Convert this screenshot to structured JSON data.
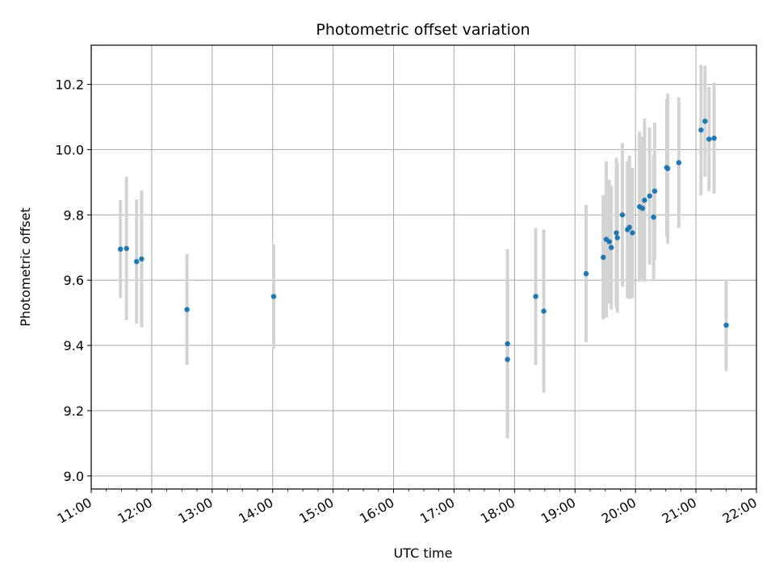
{
  "chart_data": {
    "type": "scatter",
    "title": "Photometric offset variation",
    "xlabel": "UTC time",
    "ylabel": "Photometric offset",
    "xlim": [
      "11:00",
      "22:00"
    ],
    "ylim": [
      8.96,
      10.32
    ],
    "x_ticks": [
      "11:00",
      "12:00",
      "13:00",
      "14:00",
      "15:00",
      "16:00",
      "17:00",
      "18:00",
      "19:00",
      "20:00",
      "21:00",
      "22:00"
    ],
    "y_ticks": [
      9.0,
      9.2,
      9.4,
      9.6,
      9.8,
      10.0,
      10.2
    ],
    "grid": true,
    "marker_color": "#1f77b4",
    "errorbar_color": "#d3d3d3",
    "points": [
      {
        "time": "11:29",
        "y": 9.695,
        "err": 0.15
      },
      {
        "time": "11:35",
        "y": 9.697,
        "err": 0.22
      },
      {
        "time": "11:45",
        "y": 9.657,
        "err": 0.19
      },
      {
        "time": "11:50",
        "y": 9.665,
        "err": 0.21
      },
      {
        "time": "12:35",
        "y": 9.51,
        "err": 0.17
      },
      {
        "time": "14:01",
        "y": 9.55,
        "err": 0.16
      },
      {
        "time": "17:53",
        "y": 9.405,
        "err": 0.29
      },
      {
        "time": "17:53",
        "y": 9.357,
        "err": 0.24
      },
      {
        "time": "18:21",
        "y": 9.55,
        "err": 0.21
      },
      {
        "time": "18:29",
        "y": 9.505,
        "err": 0.25
      },
      {
        "time": "19:11",
        "y": 9.62,
        "err": 0.21
      },
      {
        "time": "19:28",
        "y": 9.67,
        "err": 0.19
      },
      {
        "time": "19:31",
        "y": 9.725,
        "err": 0.24
      },
      {
        "time": "19:34",
        "y": 9.718,
        "err": 0.19
      },
      {
        "time": "19:36",
        "y": 9.7,
        "err": 0.19
      },
      {
        "time": "19:41",
        "y": 9.745,
        "err": 0.23
      },
      {
        "time": "19:42",
        "y": 9.73,
        "err": 0.23
      },
      {
        "time": "19:47",
        "y": 9.8,
        "err": 0.22
      },
      {
        "time": "19:52",
        "y": 9.755,
        "err": 0.21
      },
      {
        "time": "19:54",
        "y": 9.762,
        "err": 0.22
      },
      {
        "time": "19:57",
        "y": 9.745,
        "err": 0.2
      },
      {
        "time": "20:04",
        "y": 9.825,
        "err": 0.23
      },
      {
        "time": "20:07",
        "y": 9.82,
        "err": 0.22
      },
      {
        "time": "20:09",
        "y": 9.845,
        "err": 0.25
      },
      {
        "time": "20:14",
        "y": 9.858,
        "err": 0.21
      },
      {
        "time": "20:18",
        "y": 9.793,
        "err": 0.19
      },
      {
        "time": "20:19",
        "y": 9.873,
        "err": 0.21
      },
      {
        "time": "20:31",
        "y": 9.945,
        "err": 0.21
      },
      {
        "time": "20:32",
        "y": 9.942,
        "err": 0.23
      },
      {
        "time": "20:43",
        "y": 9.96,
        "err": 0.2
      },
      {
        "time": "21:05",
        "y": 10.06,
        "err": 0.2
      },
      {
        "time": "21:09",
        "y": 10.087,
        "err": 0.17
      },
      {
        "time": "21:13",
        "y": 10.032,
        "err": 0.16
      },
      {
        "time": "21:18",
        "y": 10.035,
        "err": 0.17
      },
      {
        "time": "21:30",
        "y": 9.462,
        "err": 0.14
      }
    ]
  }
}
